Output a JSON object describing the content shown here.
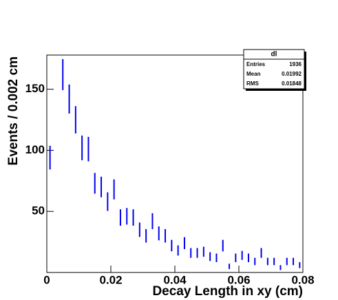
{
  "chart_data": {
    "type": "errorbar",
    "xlabel": "Decay Length in xy (cm)",
    "ylabel": "Events / 0.002 cm",
    "x": [
      0.001,
      0.005,
      0.007,
      0.009,
      0.011,
      0.013,
      0.015,
      0.017,
      0.019,
      0.021,
      0.023,
      0.025,
      0.027,
      0.029,
      0.031,
      0.033,
      0.035,
      0.037,
      0.039,
      0.041,
      0.043,
      0.045,
      0.047,
      0.049,
      0.051,
      0.053,
      0.055,
      0.057,
      0.059,
      0.061,
      0.063,
      0.065,
      0.067,
      0.069,
      0.071,
      0.073,
      0.075,
      0.077,
      0.079
    ],
    "values": [
      94,
      162,
      142,
      125,
      102,
      101,
      73,
      70,
      58,
      68,
      45,
      46,
      45,
      35,
      30,
      42,
      32,
      30,
      22,
      18,
      24,
      16,
      16,
      17,
      13,
      12,
      22,
      5,
      12,
      14,
      12,
      9,
      16,
      9,
      9,
      4,
      9,
      9,
      6
    ],
    "errors": [
      9.7,
      12.7,
      11.9,
      11.2,
      10.1,
      10,
      8.5,
      8.4,
      7.6,
      8.2,
      6.7,
      6.8,
      6.7,
      5.9,
      5.5,
      6.5,
      5.7,
      5.5,
      4.7,
      4.2,
      4.9,
      4,
      4,
      4.1,
      3.6,
      3.5,
      4.7,
      2.2,
      3.5,
      3.7,
      3.5,
      3,
      4,
      3,
      3,
      2,
      3,
      3,
      2.4
    ],
    "color": "#0000ee",
    "xlim": [
      0,
      0.08
    ],
    "xticks": [
      0,
      0.02,
      0.04,
      0.06,
      0.08
    ],
    "ylim": [
      0,
      178
    ],
    "yticks": [
      50,
      100,
      150
    ],
    "stats": {
      "title": "dl",
      "rows": [
        [
          "Entries",
          1936
        ],
        [
          "Mean",
          0.01992
        ],
        [
          "RMS",
          0.01848
        ]
      ]
    }
  }
}
